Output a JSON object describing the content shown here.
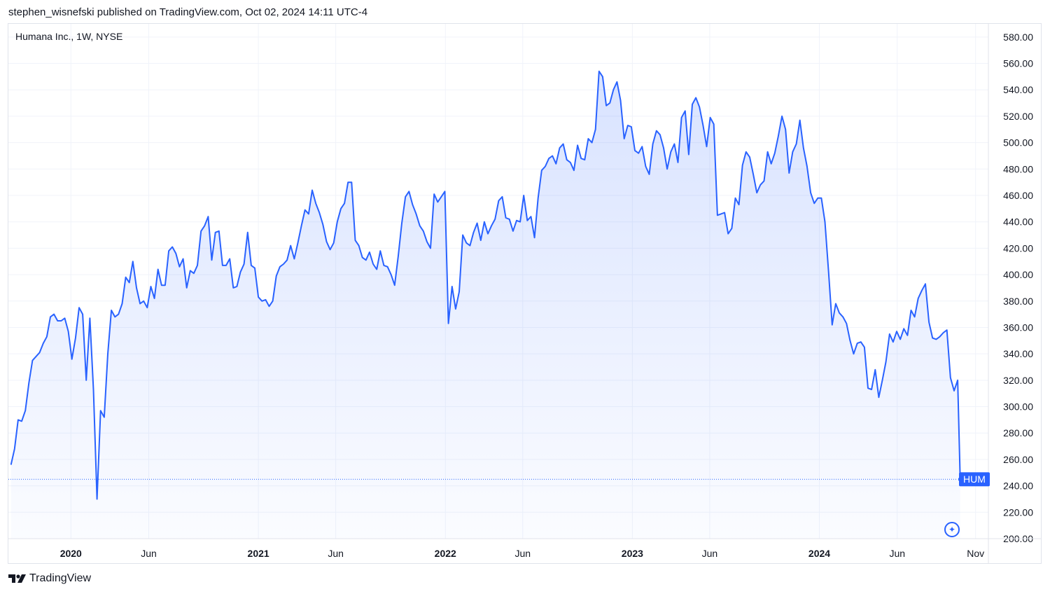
{
  "header": {
    "publisher_line": "stephen_wisnefski published on TradingView.com, Oct 02, 2024 14:11 UTC-4"
  },
  "footer": {
    "brand": "TradingView",
    "logo_icon": "tradingview-logo-icon"
  },
  "colors": {
    "line": "#2962ff",
    "fill_top": "#2962ff",
    "grid": "#f0f3fa",
    "text": "#131722"
  },
  "chart_data": {
    "type": "area",
    "title": "Humana Inc., 1W, NYSE",
    "ticker_label": "HUM",
    "last_value": 245,
    "ylim": [
      200,
      590
    ],
    "y_ticks": [
      "200.00",
      "220.00",
      "240.00",
      "260.00",
      "280.00",
      "300.00",
      "320.00",
      "340.00",
      "360.00",
      "380.00",
      "400.00",
      "420.00",
      "440.00",
      "460.00",
      "480.00",
      "500.00",
      "520.00",
      "540.00",
      "560.00",
      "580.00"
    ],
    "x_ticks": [
      {
        "label": "2020",
        "date": "2020-01-01",
        "bold": true
      },
      {
        "label": "Jun",
        "date": "2020-06-01",
        "bold": false
      },
      {
        "label": "2021",
        "date": "2021-01-01",
        "bold": true
      },
      {
        "label": "Jun",
        "date": "2021-06-01",
        "bold": false
      },
      {
        "label": "2022",
        "date": "2022-01-01",
        "bold": true
      },
      {
        "label": "Jun",
        "date": "2022-06-01",
        "bold": false
      },
      {
        "label": "2023",
        "date": "2023-01-01",
        "bold": true
      },
      {
        "label": "Jun",
        "date": "2023-06-01",
        "bold": false
      },
      {
        "label": "2024",
        "date": "2024-01-01",
        "bold": true
      },
      {
        "label": "Jun",
        "date": "2024-06-01",
        "bold": false
      },
      {
        "label": "Nov",
        "date": "2024-11-01",
        "bold": false
      }
    ],
    "x_range": [
      "2019-09-01",
      "2024-11-26"
    ],
    "grid": true,
    "series": [
      {
        "values": [
          [
            "2019-09-06",
            256
          ],
          [
            "2019-09-13",
            268
          ],
          [
            "2019-09-20",
            290
          ],
          [
            "2019-09-27",
            289
          ],
          [
            "2019-10-04",
            297
          ],
          [
            "2019-10-11",
            318
          ],
          [
            "2019-10-18",
            335
          ],
          [
            "2019-10-25",
            338
          ],
          [
            "2019-11-01",
            341
          ],
          [
            "2019-11-08",
            348
          ],
          [
            "2019-11-15",
            353
          ],
          [
            "2019-11-22",
            368
          ],
          [
            "2019-11-29",
            370
          ],
          [
            "2019-12-06",
            365
          ],
          [
            "2019-12-13",
            365
          ],
          [
            "2019-12-20",
            367
          ],
          [
            "2019-12-27",
            357
          ],
          [
            "2020-01-03",
            336
          ],
          [
            "2020-01-10",
            352
          ],
          [
            "2020-01-17",
            375
          ],
          [
            "2020-01-24",
            370
          ],
          [
            "2020-01-31",
            320
          ],
          [
            "2020-02-07",
            367
          ],
          [
            "2020-02-14",
            313
          ],
          [
            "2020-02-21",
            230
          ],
          [
            "2020-02-28",
            297
          ],
          [
            "2020-03-06",
            292
          ],
          [
            "2020-03-13",
            340
          ],
          [
            "2020-03-20",
            373
          ],
          [
            "2020-03-27",
            368
          ],
          [
            "2020-04-03",
            370
          ],
          [
            "2020-04-10",
            378
          ],
          [
            "2020-04-17",
            398
          ],
          [
            "2020-04-24",
            394
          ],
          [
            "2020-05-01",
            410
          ],
          [
            "2020-05-08",
            390
          ],
          [
            "2020-05-15",
            378
          ],
          [
            "2020-05-22",
            380
          ],
          [
            "2020-05-29",
            375
          ],
          [
            "2020-06-05",
            391
          ],
          [
            "2020-06-12",
            382
          ],
          [
            "2020-06-19",
            404
          ],
          [
            "2020-06-26",
            392
          ],
          [
            "2020-07-03",
            392
          ],
          [
            "2020-07-10",
            418
          ],
          [
            "2020-07-17",
            421
          ],
          [
            "2020-07-24",
            416
          ],
          [
            "2020-07-31",
            406
          ],
          [
            "2020-08-07",
            412
          ],
          [
            "2020-08-14",
            390
          ],
          [
            "2020-08-21",
            403
          ],
          [
            "2020-08-28",
            401
          ],
          [
            "2020-09-04",
            407
          ],
          [
            "2020-09-11",
            433
          ],
          [
            "2020-09-18",
            437
          ],
          [
            "2020-09-25",
            444
          ],
          [
            "2020-10-02",
            411
          ],
          [
            "2020-10-09",
            432
          ],
          [
            "2020-10-16",
            433
          ],
          [
            "2020-10-23",
            407
          ],
          [
            "2020-10-30",
            407
          ],
          [
            "2020-11-06",
            412
          ],
          [
            "2020-11-13",
            390
          ],
          [
            "2020-11-20",
            391
          ],
          [
            "2020-11-27",
            402
          ],
          [
            "2020-12-04",
            408
          ],
          [
            "2020-12-11",
            432
          ],
          [
            "2020-12-18",
            407
          ],
          [
            "2020-12-25",
            405
          ],
          [
            "2021-01-01",
            383
          ],
          [
            "2021-01-08",
            380
          ],
          [
            "2021-01-15",
            381
          ],
          [
            "2021-01-22",
            376
          ],
          [
            "2021-01-29",
            380
          ],
          [
            "2021-02-05",
            399
          ],
          [
            "2021-02-12",
            406
          ],
          [
            "2021-02-19",
            408
          ],
          [
            "2021-02-26",
            411
          ],
          [
            "2021-03-05",
            422
          ],
          [
            "2021-03-12",
            412
          ],
          [
            "2021-03-19",
            424
          ],
          [
            "2021-03-26",
            437
          ],
          [
            "2021-04-02",
            449
          ],
          [
            "2021-04-09",
            446
          ],
          [
            "2021-04-16",
            464
          ],
          [
            "2021-04-23",
            454
          ],
          [
            "2021-04-30",
            447
          ],
          [
            "2021-05-07",
            438
          ],
          [
            "2021-05-14",
            425
          ],
          [
            "2021-05-21",
            419
          ],
          [
            "2021-05-28",
            424
          ],
          [
            "2021-06-04",
            440
          ],
          [
            "2021-06-11",
            450
          ],
          [
            "2021-06-18",
            454
          ],
          [
            "2021-06-25",
            470
          ],
          [
            "2021-07-02",
            470
          ],
          [
            "2021-07-09",
            426
          ],
          [
            "2021-07-16",
            422
          ],
          [
            "2021-07-23",
            413
          ],
          [
            "2021-07-30",
            411
          ],
          [
            "2021-08-06",
            417
          ],
          [
            "2021-08-13",
            408
          ],
          [
            "2021-08-20",
            404
          ],
          [
            "2021-08-27",
            418
          ],
          [
            "2021-09-03",
            407
          ],
          [
            "2021-09-10",
            406
          ],
          [
            "2021-09-17",
            400
          ],
          [
            "2021-09-24",
            392
          ],
          [
            "2021-10-01",
            414
          ],
          [
            "2021-10-08",
            439
          ],
          [
            "2021-10-15",
            459
          ],
          [
            "2021-10-22",
            463
          ],
          [
            "2021-10-29",
            453
          ],
          [
            "2021-11-05",
            446
          ],
          [
            "2021-11-12",
            437
          ],
          [
            "2021-11-19",
            433
          ],
          [
            "2021-11-26",
            425
          ],
          [
            "2021-12-03",
            420
          ],
          [
            "2021-12-10",
            461
          ],
          [
            "2021-12-17",
            455
          ],
          [
            "2021-12-24",
            459
          ],
          [
            "2021-12-31",
            463
          ],
          [
            "2022-01-07",
            363
          ],
          [
            "2022-01-14",
            391
          ],
          [
            "2022-01-21",
            374
          ],
          [
            "2022-01-28",
            387
          ],
          [
            "2022-02-04",
            430
          ],
          [
            "2022-02-11",
            424
          ],
          [
            "2022-02-18",
            422
          ],
          [
            "2022-02-25",
            432
          ],
          [
            "2022-03-04",
            439
          ],
          [
            "2022-03-11",
            426
          ],
          [
            "2022-03-18",
            440
          ],
          [
            "2022-03-25",
            431
          ],
          [
            "2022-04-01",
            437
          ],
          [
            "2022-04-08",
            442
          ],
          [
            "2022-04-15",
            456
          ],
          [
            "2022-04-22",
            459
          ],
          [
            "2022-04-29",
            443
          ],
          [
            "2022-05-06",
            442
          ],
          [
            "2022-05-13",
            433
          ],
          [
            "2022-05-20",
            441
          ],
          [
            "2022-05-27",
            440
          ],
          [
            "2022-06-03",
            460
          ],
          [
            "2022-06-10",
            441
          ],
          [
            "2022-06-17",
            444
          ],
          [
            "2022-06-24",
            428
          ],
          [
            "2022-07-01",
            458
          ],
          [
            "2022-07-08",
            479
          ],
          [
            "2022-07-15",
            482
          ],
          [
            "2022-07-22",
            488
          ],
          [
            "2022-07-29",
            490
          ],
          [
            "2022-08-05",
            484
          ],
          [
            "2022-08-12",
            496
          ],
          [
            "2022-08-19",
            499
          ],
          [
            "2022-08-26",
            487
          ],
          [
            "2022-09-02",
            485
          ],
          [
            "2022-09-09",
            479
          ],
          [
            "2022-09-16",
            498
          ],
          [
            "2022-09-23",
            488
          ],
          [
            "2022-09-30",
            487
          ],
          [
            "2022-10-07",
            503
          ],
          [
            "2022-10-14",
            500
          ],
          [
            "2022-10-21",
            510
          ],
          [
            "2022-10-28",
            554
          ],
          [
            "2022-11-04",
            550
          ],
          [
            "2022-11-11",
            528
          ],
          [
            "2022-11-18",
            530
          ],
          [
            "2022-11-25",
            540
          ],
          [
            "2022-12-02",
            546
          ],
          [
            "2022-12-09",
            532
          ],
          [
            "2022-12-16",
            503
          ],
          [
            "2022-12-23",
            513
          ],
          [
            "2022-12-30",
            512
          ],
          [
            "2023-01-06",
            494
          ],
          [
            "2023-01-13",
            492
          ],
          [
            "2023-01-20",
            497
          ],
          [
            "2023-01-27",
            482
          ],
          [
            "2023-02-03",
            476
          ],
          [
            "2023-02-10",
            499
          ],
          [
            "2023-02-17",
            509
          ],
          [
            "2023-02-24",
            506
          ],
          [
            "2023-03-03",
            496
          ],
          [
            "2023-03-10",
            480
          ],
          [
            "2023-03-17",
            493
          ],
          [
            "2023-03-24",
            499
          ],
          [
            "2023-03-31",
            485
          ],
          [
            "2023-04-07",
            519
          ],
          [
            "2023-04-14",
            524
          ],
          [
            "2023-04-21",
            491
          ],
          [
            "2023-04-28",
            529
          ],
          [
            "2023-05-05",
            534
          ],
          [
            "2023-05-12",
            527
          ],
          [
            "2023-05-19",
            513
          ],
          [
            "2023-05-26",
            497
          ],
          [
            "2023-06-02",
            519
          ],
          [
            "2023-06-09",
            514
          ],
          [
            "2023-06-16",
            445
          ],
          [
            "2023-06-23",
            446
          ],
          [
            "2023-06-30",
            447
          ],
          [
            "2023-07-07",
            431
          ],
          [
            "2023-07-14",
            435
          ],
          [
            "2023-07-21",
            458
          ],
          [
            "2023-07-28",
            453
          ],
          [
            "2023-08-04",
            483
          ],
          [
            "2023-08-11",
            493
          ],
          [
            "2023-08-18",
            489
          ],
          [
            "2023-08-25",
            476
          ],
          [
            "2023-09-01",
            462
          ],
          [
            "2023-09-08",
            468
          ],
          [
            "2023-09-15",
            471
          ],
          [
            "2023-09-22",
            493
          ],
          [
            "2023-09-29",
            484
          ],
          [
            "2023-10-06",
            492
          ],
          [
            "2023-10-13",
            505
          ],
          [
            "2023-10-20",
            520
          ],
          [
            "2023-10-27",
            510
          ],
          [
            "2023-11-03",
            477
          ],
          [
            "2023-11-10",
            493
          ],
          [
            "2023-11-17",
            499
          ],
          [
            "2023-11-24",
            517
          ],
          [
            "2023-12-01",
            496
          ],
          [
            "2023-12-08",
            482
          ],
          [
            "2023-12-15",
            462
          ],
          [
            "2023-12-22",
            454
          ],
          [
            "2023-12-29",
            458
          ],
          [
            "2024-01-05",
            458
          ],
          [
            "2024-01-12",
            440
          ],
          [
            "2024-01-19",
            402
          ],
          [
            "2024-01-26",
            362
          ],
          [
            "2024-02-02",
            378
          ],
          [
            "2024-02-09",
            371
          ],
          [
            "2024-02-16",
            368
          ],
          [
            "2024-02-23",
            363
          ],
          [
            "2024-03-01",
            350
          ],
          [
            "2024-03-08",
            340
          ],
          [
            "2024-03-15",
            348
          ],
          [
            "2024-03-22",
            349
          ],
          [
            "2024-03-29",
            345
          ],
          [
            "2024-04-05",
            314
          ],
          [
            "2024-04-12",
            313
          ],
          [
            "2024-04-19",
            328
          ],
          [
            "2024-04-26",
            307
          ],
          [
            "2024-05-03",
            320
          ],
          [
            "2024-05-10",
            334
          ],
          [
            "2024-05-17",
            355
          ],
          [
            "2024-05-24",
            349
          ],
          [
            "2024-05-31",
            357
          ],
          [
            "2024-06-07",
            351
          ],
          [
            "2024-06-14",
            359
          ],
          [
            "2024-06-21",
            354
          ],
          [
            "2024-06-28",
            373
          ],
          [
            "2024-07-05",
            368
          ],
          [
            "2024-07-12",
            382
          ],
          [
            "2024-07-19",
            388
          ],
          [
            "2024-07-26",
            393
          ],
          [
            "2024-08-02",
            364
          ],
          [
            "2024-08-09",
            352
          ],
          [
            "2024-08-16",
            351
          ],
          [
            "2024-08-23",
            353
          ],
          [
            "2024-08-30",
            356
          ],
          [
            "2024-09-06",
            358
          ],
          [
            "2024-09-13",
            322
          ],
          [
            "2024-09-20",
            312
          ],
          [
            "2024-09-27",
            320
          ],
          [
            "2024-10-02",
            245
          ]
        ]
      }
    ]
  }
}
